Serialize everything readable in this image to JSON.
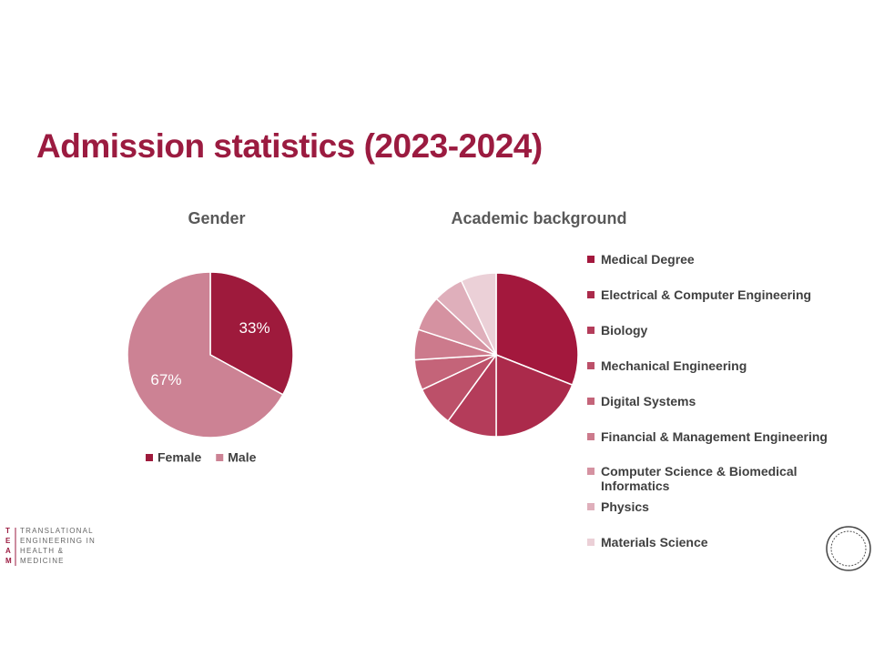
{
  "title": "Admission statistics (2023-2024)",
  "logo": {
    "letters": [
      "T",
      "E",
      "A",
      "M"
    ],
    "lines": [
      "TRANSLATIONAL",
      "ENGINEERING IN",
      "HEALTH &",
      "MEDICINE"
    ]
  },
  "chart_data": [
    {
      "type": "pie",
      "title": "Gender",
      "categories": [
        "Female",
        "Male"
      ],
      "values": [
        33,
        67
      ],
      "value_labels": [
        "33%",
        "67%"
      ],
      "colors": [
        "#9e1a3c",
        "#cc8294"
      ],
      "legend": "bottom"
    },
    {
      "type": "pie",
      "title": "Academic background",
      "categories": [
        "Medical Degree",
        "Electrical & Computer Engineering",
        "Biology",
        "Mechanical Engineering",
        "Digital Systems",
        "Financial & Management Engineering",
        "Computer Science & Biomedical Informatics",
        "Physics",
        "Materials Science"
      ],
      "values": [
        31,
        19,
        10,
        8,
        6,
        6,
        7,
        6,
        7
      ],
      "colors": [
        "#a3183d",
        "#ab2a4b",
        "#b43c5a",
        "#bc5069",
        "#c46479",
        "#cc7a8c",
        "#d592a1",
        "#dfafbb",
        "#ebd0d7"
      ],
      "legend": "right"
    }
  ]
}
